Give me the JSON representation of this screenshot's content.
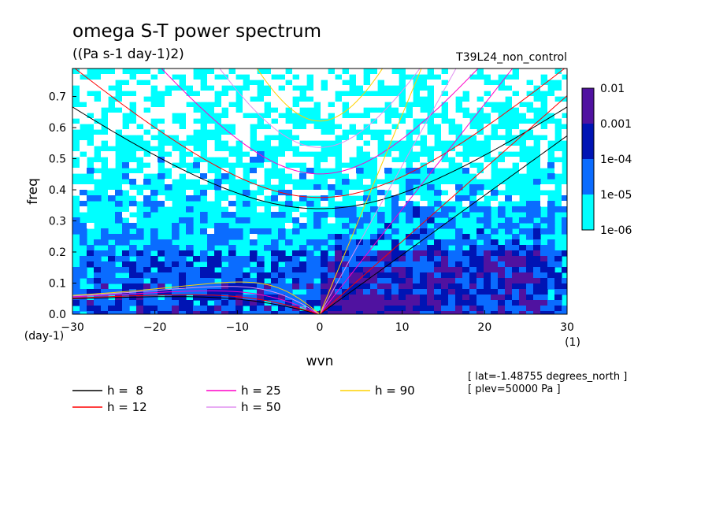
{
  "chart_data": {
    "type": "heatmap",
    "title": "omega S-T power spectrum",
    "subtitle": "((Pa s-1 day-1)2)",
    "run_label": "T39L24_non_control",
    "xlabel": "wvn",
    "ylabel": "freq",
    "xunit": "(1)",
    "yunit": "(day-1)",
    "xlim": [
      -30,
      30
    ],
    "ylim": [
      0,
      0.79
    ],
    "xticks": [
      "−30",
      "−20",
      "−10",
      "0",
      "10",
      "20",
      "30"
    ],
    "yticks": [
      "0.0",
      "0.1",
      "0.2",
      "0.3",
      "0.4",
      "0.5",
      "0.6",
      "0.7"
    ],
    "colorbar": {
      "labels": [
        "0.01",
        "0.001",
        "1e-04",
        "1e-05",
        "1e-06"
      ],
      "levels": [
        1e-06,
        1e-05,
        0.0001,
        0.001,
        0.01
      ],
      "colors": [
        "#00ffff",
        "#0a6cff",
        "#0014b4",
        "#5012a0"
      ]
    },
    "dispersion_legend": [
      {
        "label": "h =  8",
        "h": 8,
        "color": "#000000"
      },
      {
        "label": "h = 12",
        "h": 12,
        "color": "#ff0000"
      },
      {
        "label": "h = 25",
        "h": 25,
        "color": "#ff00c8"
      },
      {
        "label": "h = 50",
        "h": 50,
        "color": "#e090f0"
      },
      {
        "label": "h = 90",
        "h": 90,
        "color": "#ffd200"
      }
    ],
    "info": [
      "[ lat=-1.48755 degrees_north ]",
      "[ plev=50000 Pa ]"
    ]
  }
}
